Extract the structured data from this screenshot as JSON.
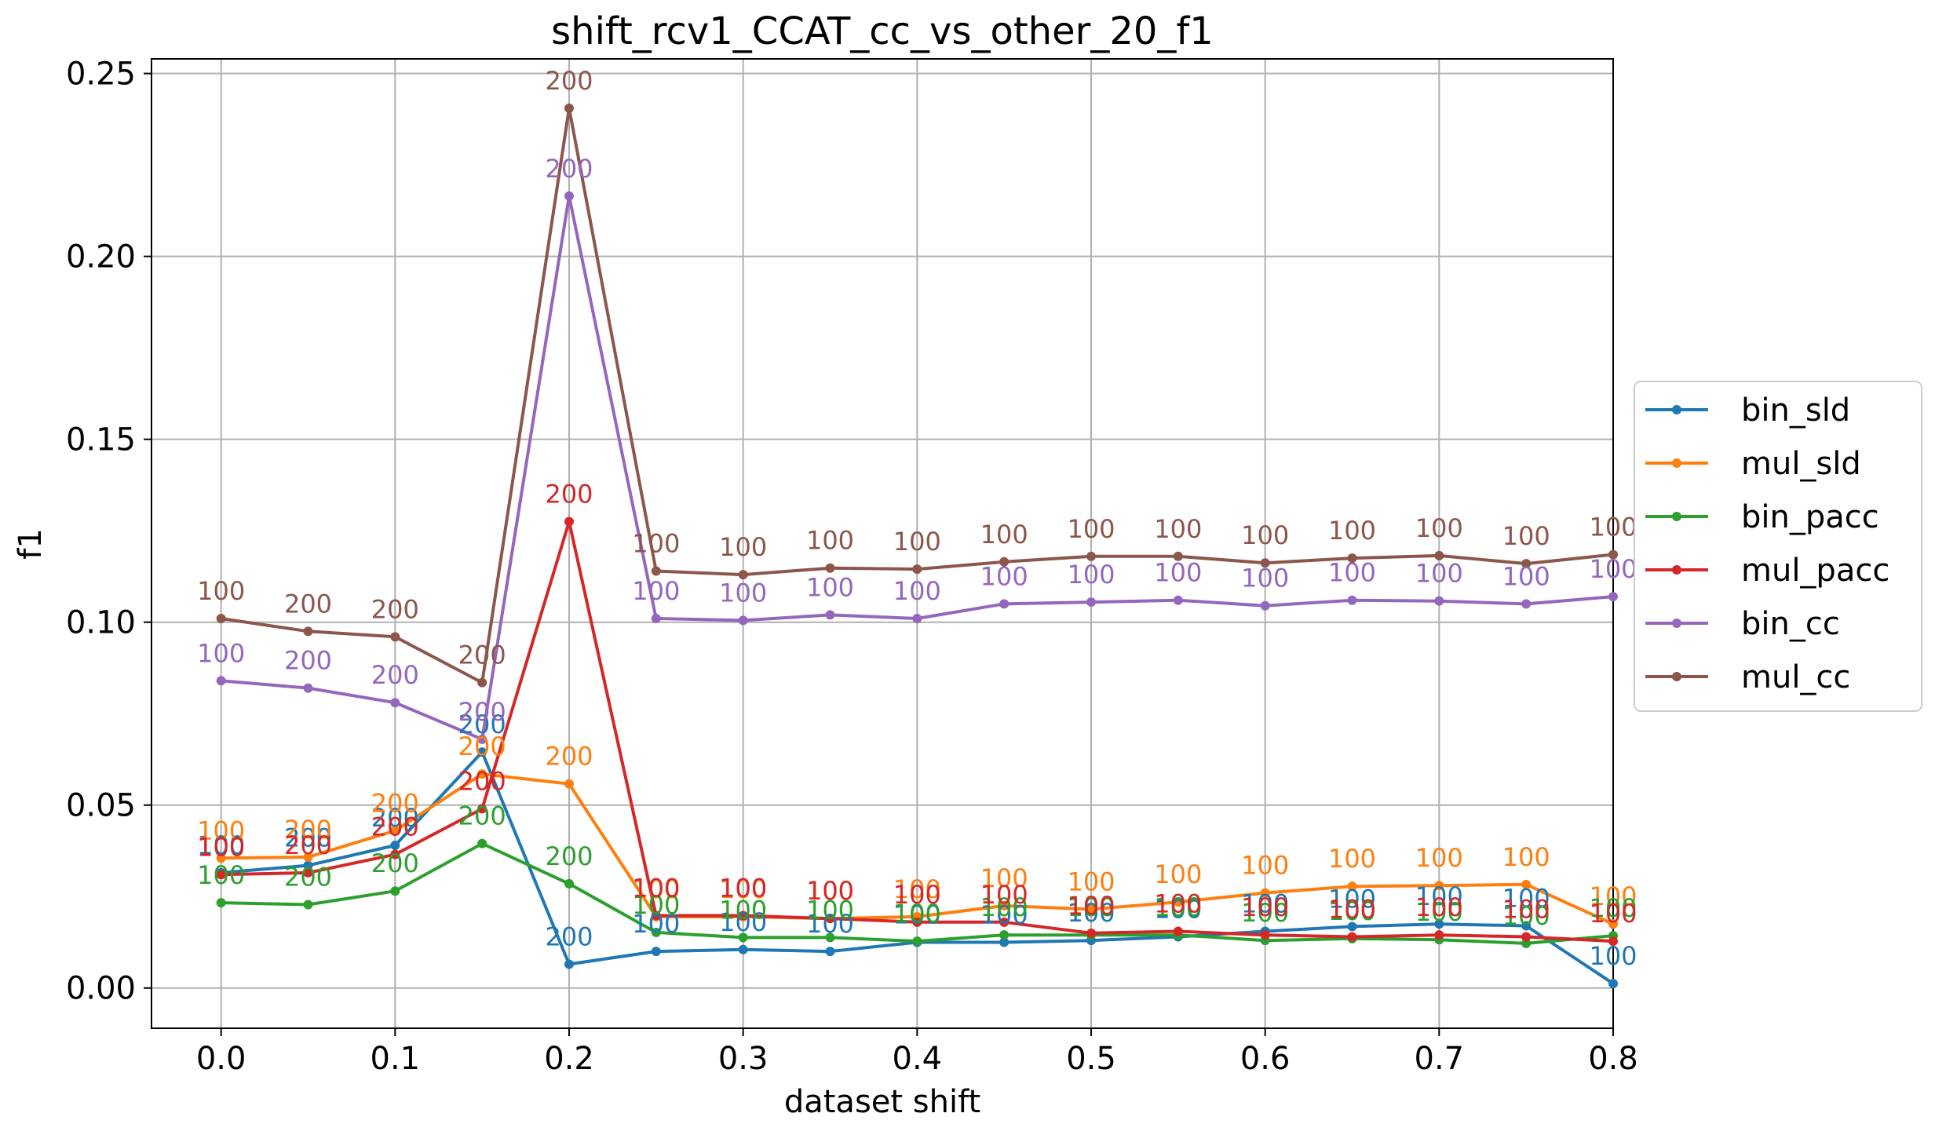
{
  "chart_data": {
    "type": "line",
    "title": "shift_rcv1_CCAT_cc_vs_other_20_f1",
    "xlabel": "dataset shift",
    "ylabel": "f1",
    "xlim": [
      -0.04,
      0.8
    ],
    "ylim": [
      -0.011,
      0.254
    ],
    "x_ticks": [
      "0.0",
      "0.1",
      "0.2",
      "0.3",
      "0.4",
      "0.5",
      "0.6",
      "0.7",
      "0.8"
    ],
    "y_ticks": [
      "0.00",
      "0.05",
      "0.10",
      "0.15",
      "0.20",
      "0.25"
    ],
    "grid": true,
    "legend_position": "center-right",
    "x": [
      0.0,
      0.05,
      0.1,
      0.15,
      0.2,
      0.25,
      0.3,
      0.35,
      0.4,
      0.45,
      0.5,
      0.55,
      0.6,
      0.65,
      0.7,
      0.75,
      0.8
    ],
    "series": [
      {
        "name": "bin_sld",
        "color": "#1f77b4",
        "values": [
          0.0315,
          0.0335,
          0.039,
          0.0645,
          0.0065,
          0.01,
          0.0105,
          0.01,
          0.0125,
          0.0125,
          0.013,
          0.014,
          0.0155,
          0.0168,
          0.0175,
          0.017,
          0.0012
        ],
        "labels": [
          "100",
          "200",
          "200",
          "200",
          "200",
          "100",
          "100",
          "100",
          "100",
          "100",
          "100",
          "100",
          "100",
          "100",
          "100",
          "100",
          "100"
        ]
      },
      {
        "name": "mul_sld",
        "color": "#ff7f0e",
        "values": [
          0.0355,
          0.0358,
          0.043,
          0.0585,
          0.0558,
          0.0195,
          0.0195,
          0.019,
          0.0195,
          0.0225,
          0.0215,
          0.0235,
          0.026,
          0.0278,
          0.028,
          0.0283,
          0.0175
        ],
        "labels": [
          "100",
          "200",
          "200",
          "200",
          "200",
          "100",
          "100",
          "100",
          "100",
          "100",
          "100",
          "100",
          "100",
          "100",
          "100",
          "100",
          "100"
        ]
      },
      {
        "name": "bin_pacc",
        "color": "#2ca02c",
        "values": [
          0.0233,
          0.0228,
          0.0265,
          0.0395,
          0.0285,
          0.0152,
          0.0138,
          0.0138,
          0.0128,
          0.0145,
          0.0145,
          0.0145,
          0.013,
          0.0135,
          0.0132,
          0.0122,
          0.0143
        ],
        "labels": [
          "100",
          "200",
          "200",
          "200",
          "200",
          "100",
          "100",
          "100",
          "100",
          "100",
          "100",
          "100",
          "100",
          "100",
          "100",
          "100",
          "100"
        ]
      },
      {
        "name": "mul_pacc",
        "color": "#d62728",
        "values": [
          0.031,
          0.0315,
          0.0365,
          0.049,
          0.1275,
          0.0198,
          0.0198,
          0.019,
          0.018,
          0.018,
          0.015,
          0.0155,
          0.0145,
          0.014,
          0.0145,
          0.014,
          0.0128
        ],
        "labels": [
          "100",
          "200",
          "200",
          "200",
          "200",
          "100",
          "100",
          "100",
          "100",
          "100",
          "100",
          "100",
          "100",
          "100",
          "100",
          "100",
          "100"
        ]
      },
      {
        "name": "bin_cc",
        "color": "#9467bd",
        "values": [
          0.084,
          0.082,
          0.078,
          0.068,
          0.2165,
          0.101,
          0.1005,
          0.102,
          0.101,
          0.105,
          0.1055,
          0.106,
          0.1045,
          0.106,
          0.1058,
          0.105,
          0.107
        ],
        "labels": [
          "100",
          "200",
          "200",
          "200",
          "200",
          "100",
          "100",
          "100",
          "100",
          "100",
          "100",
          "100",
          "100",
          "100",
          "100",
          "100",
          "100"
        ]
      },
      {
        "name": "mul_cc",
        "color": "#8c564b",
        "values": [
          0.101,
          0.0975,
          0.096,
          0.0835,
          0.2405,
          0.114,
          0.113,
          0.1148,
          0.1145,
          0.1165,
          0.118,
          0.118,
          0.1162,
          0.1175,
          0.1182,
          0.116,
          0.1185
        ],
        "labels": [
          "100",
          "200",
          "200",
          "200",
          "200",
          "100",
          "100",
          "100",
          "100",
          "100",
          "100",
          "100",
          "100",
          "100",
          "100",
          "100",
          "100"
        ]
      }
    ]
  }
}
